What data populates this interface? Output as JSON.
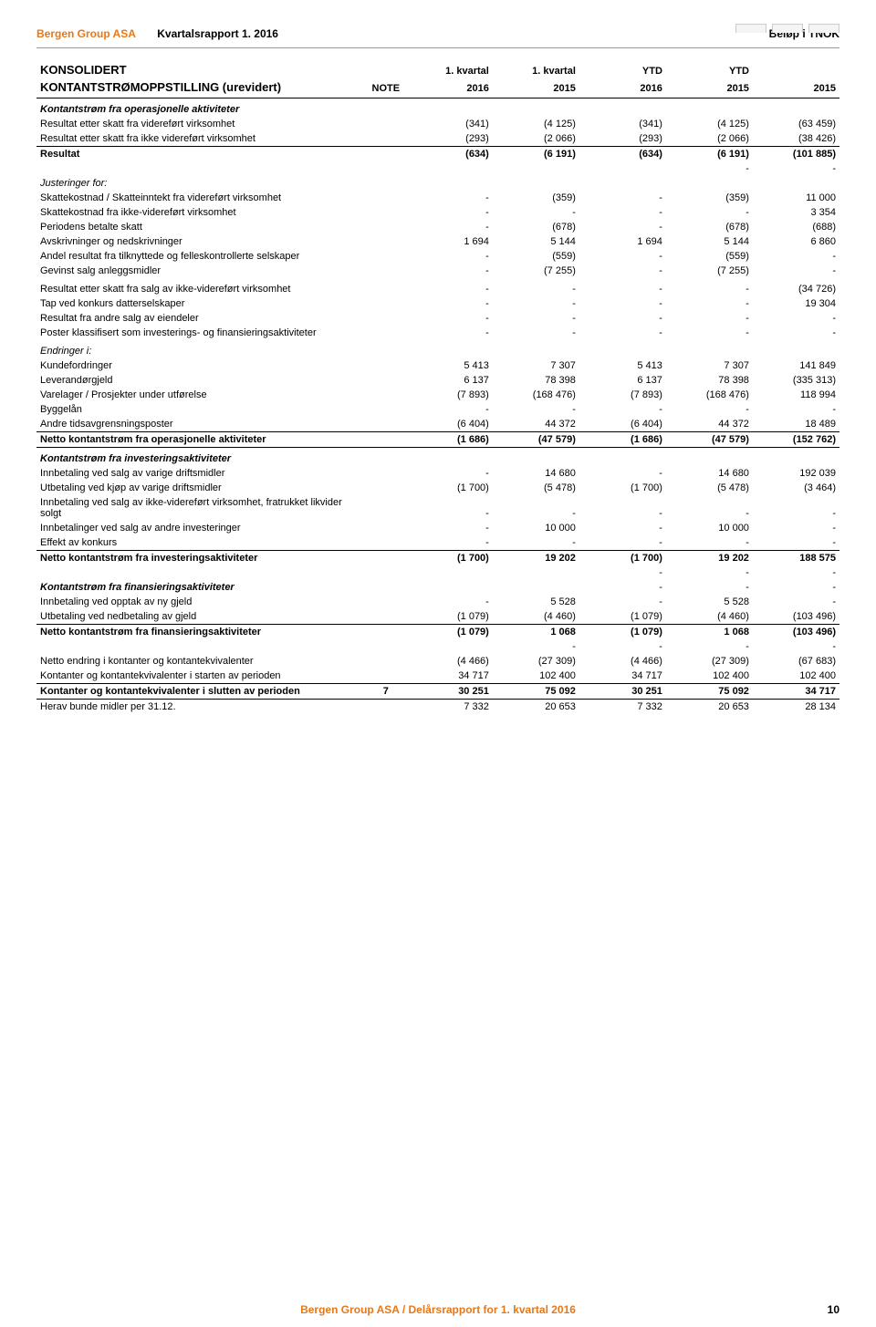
{
  "header": {
    "company": "Bergen Group ASA",
    "report": "Kvartalsrapport 1. 2016",
    "unit": "Beløp i TNOK"
  },
  "title": {
    "line1": "KONSOLIDERT",
    "line2": "KONTANTSTRØMOPPSTILLING (urevidert)",
    "note": "NOTE",
    "cols": [
      "1. kvartal",
      "1. kvartal",
      "YTD",
      "YTD",
      ""
    ],
    "years": [
      "2016",
      "2015",
      "2016",
      "2015",
      "2015"
    ]
  },
  "sections": {
    "ops_header": "Kontantstrøm fra operasjonelle aktiviteter",
    "rows1": [
      {
        "label": "Resultat etter skatt fra videreført virksomhet",
        "v": [
          "(341)",
          "(4 125)",
          "(341)",
          "(4 125)",
          "(63 459)"
        ]
      },
      {
        "label": "Resultat etter skatt fra ikke videreført virksomhet",
        "v": [
          "(293)",
          "(2 066)",
          "(293)",
          "(2 066)",
          "(38 426)"
        ]
      }
    ],
    "resultat": {
      "label": "Resultat",
      "v": [
        "(634)",
        "(6 191)",
        "(634)",
        "(6 191)",
        "(101 885)"
      ]
    },
    "dash_row": {
      "v": [
        "",
        "",
        "",
        "-",
        "-"
      ]
    },
    "justeringer": "Justeringer for:",
    "rows2": [
      {
        "label": "Skattekostnad / Skatteinntekt fra videreført virksomhet",
        "v": [
          "-",
          "(359)",
          "-",
          "(359)",
          "11 000"
        ]
      },
      {
        "label": "Skattekostnad fra ikke-videreført virksomhet",
        "v": [
          "-",
          "-",
          "-",
          "-",
          "3 354"
        ]
      },
      {
        "label": "Periodens betalte skatt",
        "v": [
          "-",
          "(678)",
          "-",
          "(678)",
          "(688)"
        ]
      },
      {
        "label": "Avskrivninger og nedskrivninger",
        "v": [
          "1 694",
          "5 144",
          "1 694",
          "5 144",
          "6 860"
        ]
      },
      {
        "label": "Andel resultat fra tilknyttede og felleskontrollerte selskaper",
        "v": [
          "-",
          "(559)",
          "-",
          "(559)",
          "-"
        ]
      },
      {
        "label": "Gevinst salg anleggsmidler",
        "v": [
          "-",
          "(7 255)",
          "-",
          "(7 255)",
          "-"
        ]
      }
    ],
    "rows3": [
      {
        "label": "Resultat etter skatt fra salg av ikke-videreført virksomhet",
        "v": [
          "-",
          "-",
          "-",
          "-",
          "(34 726)"
        ]
      },
      {
        "label": "Tap ved konkurs datterselskaper",
        "v": [
          "-",
          "-",
          "-",
          "-",
          "19 304"
        ]
      },
      {
        "label": "Resultat fra andre salg av eiendeler",
        "v": [
          "-",
          "-",
          "-",
          "-",
          "-"
        ]
      },
      {
        "label": "Poster klassifisert som investerings- og finansieringsaktiviteter",
        "v": [
          "-",
          "-",
          "-",
          "-",
          "-"
        ]
      }
    ],
    "endringer_header": "Endringer i:",
    "rows4": [
      {
        "label": "Kundefordringer",
        "v": [
          "5 413",
          "7 307",
          "5 413",
          "7 307",
          "141 849"
        ]
      },
      {
        "label": "Leverandørgjeld",
        "v": [
          "6 137",
          "78 398",
          "6 137",
          "78 398",
          "(335 313)"
        ]
      },
      {
        "label": "Varelager / Prosjekter under utførelse",
        "v": [
          "(7 893)",
          "(168 476)",
          "(7 893)",
          "(168 476)",
          "118 994"
        ]
      },
      {
        "label": "Byggelån",
        "v": [
          "-",
          "-",
          "-",
          "-",
          "-"
        ]
      },
      {
        "label": "Andre tidsavgrensningsposter",
        "v": [
          "(6 404)",
          "44 372",
          "(6 404)",
          "44 372",
          "18 489"
        ]
      }
    ],
    "net_ops": {
      "label": "Netto kontantstrøm fra operasjonelle aktiviteter",
      "v": [
        "(1 686)",
        "(47 579)",
        "(1 686)",
        "(47 579)",
        "(152 762)"
      ]
    },
    "inv_header": "Kontantstrøm fra investeringsaktiviteter",
    "rows5": [
      {
        "label": "Innbetaling ved salg av varige driftsmidler",
        "v": [
          "-",
          "14 680",
          "-",
          "14 680",
          "192 039"
        ]
      },
      {
        "label": "Utbetaling ved kjøp av varige driftsmidler",
        "v": [
          "(1 700)",
          "(5 478)",
          "(1 700)",
          "(5 478)",
          "(3 464)"
        ]
      },
      {
        "label": "Innbetaling ved salg av ikke-videreført virksomhet, fratrukket likvider solgt",
        "v": [
          "-",
          "-",
          "-",
          "-",
          "-"
        ]
      },
      {
        "label": "Innbetalinger ved salg av andre investeringer",
        "v": [
          "-",
          "10 000",
          "-",
          "10 000",
          "-"
        ]
      },
      {
        "label": "Effekt av konkurs",
        "v": [
          "-",
          "-",
          "-",
          "-",
          "-"
        ]
      }
    ],
    "net_inv": {
      "label": "Netto kontantstrøm fra investeringsaktiviteter",
      "v": [
        "(1 700)",
        "19 202",
        "(1 700)",
        "19 202",
        "188 575"
      ]
    },
    "dash_inv": {
      "v": [
        "",
        "",
        "-",
        "-",
        "-"
      ]
    },
    "fin_header": "Kontantstrøm fra finansieringsaktiviteter",
    "fin_dash": {
      "v": [
        "",
        "",
        "-",
        "-",
        "-"
      ]
    },
    "rows6": [
      {
        "label": "Innbetaling ved opptak av ny gjeld",
        "v": [
          "-",
          "5 528",
          "-",
          "5 528",
          "-"
        ]
      },
      {
        "label": "Utbetaling ved nedbetaling av gjeld",
        "v": [
          "(1 079)",
          "(4 460)",
          "(1 079)",
          "(4 460)",
          "(103 496)"
        ]
      }
    ],
    "net_fin": {
      "label": "Netto kontantstrøm fra finansieringsaktiviteter",
      "v": [
        "(1 079)",
        "1 068",
        "(1 079)",
        "1 068",
        "(103 496)"
      ]
    },
    "dash_fin2": {
      "v": [
        "",
        "-",
        "-",
        "-",
        "-"
      ]
    },
    "rows7": [
      {
        "label": "Netto endring i kontanter og kontantekvivalenter",
        "v": [
          "(4 466)",
          "(27 309)",
          "(4 466)",
          "(27 309)",
          "(67 683)"
        ]
      },
      {
        "label": "Kontanter og kontantekvivalenter i starten av perioden",
        "v": [
          "34 717",
          "102 400",
          "34 717",
          "102 400",
          "102 400"
        ]
      }
    ],
    "cash_end": {
      "label": "Kontanter og kontantekvivalenter i slutten av perioden",
      "note": "7",
      "v": [
        "30 251",
        "75 092",
        "30 251",
        "75 092",
        "34 717"
      ]
    },
    "herav": {
      "label": "Herav bunde midler per 31.12.",
      "v": [
        "7 332",
        "20 653",
        "7 332",
        "20 653",
        "28 134"
      ]
    }
  },
  "footer": {
    "text": "Bergen Group ASA / Delårsrapport for 1. kvartal 2016",
    "page": "10"
  }
}
